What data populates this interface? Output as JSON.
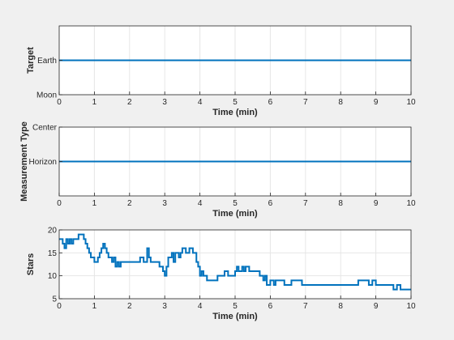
{
  "colors": {
    "figure_bg": "#f0f0f0",
    "axes_bg": "#ffffff",
    "grid": "#e6e6e6",
    "axis": "#262626",
    "series": "#0072bd"
  },
  "chart_data": [
    {
      "type": "line",
      "xlabel": "Time (min)",
      "ylabel": "Target",
      "xlim": [
        0,
        10
      ],
      "ylim": [
        0,
        2
      ],
      "xticks": [
        0,
        1,
        2,
        3,
        4,
        5,
        6,
        7,
        8,
        9,
        10
      ],
      "yticks": [
        0,
        1
      ],
      "yticklabels": [
        "Moon",
        "Earth"
      ],
      "grid": true,
      "legend": "none",
      "series": [
        {
          "x": [
            0,
            10
          ],
          "y": [
            1,
            1
          ]
        }
      ]
    },
    {
      "type": "line",
      "xlabel": "Time (min)",
      "ylabel": "Measurement Type",
      "xlim": [
        0,
        10
      ],
      "ylim": [
        0,
        2
      ],
      "xticks": [
        0,
        1,
        2,
        3,
        4,
        5,
        6,
        7,
        8,
        9,
        10
      ],
      "yticks": [
        1,
        2
      ],
      "yticklabels": [
        "Horizon",
        "Center"
      ],
      "grid": true,
      "legend": "none",
      "series": [
        {
          "x": [
            0,
            10
          ],
          "y": [
            1,
            1
          ]
        }
      ]
    },
    {
      "type": "line",
      "xlabel": "Time (min)",
      "ylabel": "Stars",
      "xlim": [
        0,
        10
      ],
      "ylim": [
        5,
        20
      ],
      "xticks": [
        0,
        1,
        2,
        3,
        4,
        5,
        6,
        7,
        8,
        9,
        10
      ],
      "yticks": [
        5,
        10,
        15,
        20
      ],
      "yticklabels": [
        "5",
        "10",
        "15",
        "20"
      ],
      "grid": true,
      "legend": "none",
      "series": [
        {
          "step": true,
          "x": [
            0,
            0.1,
            0.15,
            0.2,
            0.25,
            0.3,
            0.35,
            0.4,
            0.5,
            0.55,
            0.6,
            0.7,
            0.75,
            0.8,
            0.85,
            0.9,
            1.0,
            1.1,
            1.15,
            1.2,
            1.25,
            1.3,
            1.35,
            1.4,
            1.5,
            1.55,
            1.6,
            1.65,
            1.7,
            1.75,
            1.8,
            1.9,
            2.0,
            2.1,
            2.3,
            2.4,
            2.5,
            2.55,
            2.6,
            2.7,
            2.85,
            2.95,
            3.0,
            3.05,
            3.1,
            3.2,
            3.25,
            3.3,
            3.4,
            3.45,
            3.5,
            3.6,
            3.7,
            3.8,
            3.9,
            3.95,
            4.0,
            4.05,
            4.1,
            4.2,
            4.3,
            4.5,
            4.6,
            4.7,
            4.8,
            4.9,
            5.0,
            5.05,
            5.1,
            5.2,
            5.25,
            5.3,
            5.4,
            5.5,
            5.6,
            5.7,
            5.8,
            5.85,
            5.9,
            6.0,
            6.1,
            6.15,
            6.2,
            6.4,
            6.5,
            6.6,
            6.7,
            6.9,
            7.0,
            8.0,
            8.5,
            8.8,
            8.9,
            9.0,
            9.4,
            9.5,
            9.6,
            9.7,
            10.0
          ],
          "y": [
            18,
            17,
            16,
            18,
            17,
            18,
            17,
            18,
            18,
            19,
            19,
            18,
            17,
            16,
            15,
            14,
            13,
            14,
            15,
            16,
            17,
            16,
            15,
            14,
            13,
            14,
            12,
            13,
            12,
            13,
            13,
            13,
            13,
            13,
            14,
            13,
            16,
            14,
            13,
            13,
            12,
            11,
            10,
            12,
            14,
            15,
            13,
            15,
            14,
            15,
            16,
            15,
            16,
            15,
            13,
            12,
            10,
            11,
            10,
            9,
            9,
            10,
            10,
            11,
            10,
            10,
            11,
            12,
            11,
            12,
            11,
            12,
            11,
            11,
            11,
            10,
            9,
            10,
            8,
            9,
            8,
            9,
            9,
            8,
            8,
            9,
            9,
            8,
            8,
            8,
            9,
            8,
            9,
            8,
            8,
            7,
            8,
            7,
            7
          ]
        }
      ]
    }
  ]
}
